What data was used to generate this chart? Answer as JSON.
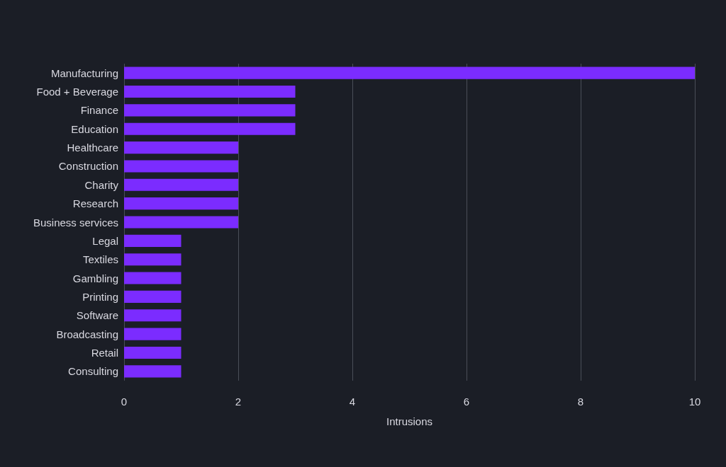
{
  "chart_data": {
    "type": "bar",
    "orientation": "horizontal",
    "xlabel": "Intrusions",
    "categories": [
      "Manufacturing",
      "Food + Beverage",
      "Finance",
      "Education",
      "Healthcare",
      "Construction",
      "Charity",
      "Research",
      "Business services",
      "Legal",
      "Textiles",
      "Gambling",
      "Printing",
      "Software",
      "Broadcasting",
      "Retail",
      "Consulting"
    ],
    "values": [
      10,
      3,
      3,
      3,
      2,
      2,
      2,
      2,
      2,
      1,
      1,
      1,
      1,
      1,
      1,
      1,
      1
    ],
    "color": "#7b2cff",
    "xlim": [
      0,
      10
    ],
    "xticks": [
      0,
      2,
      4,
      6,
      8,
      10
    ],
    "grid": "x"
  }
}
